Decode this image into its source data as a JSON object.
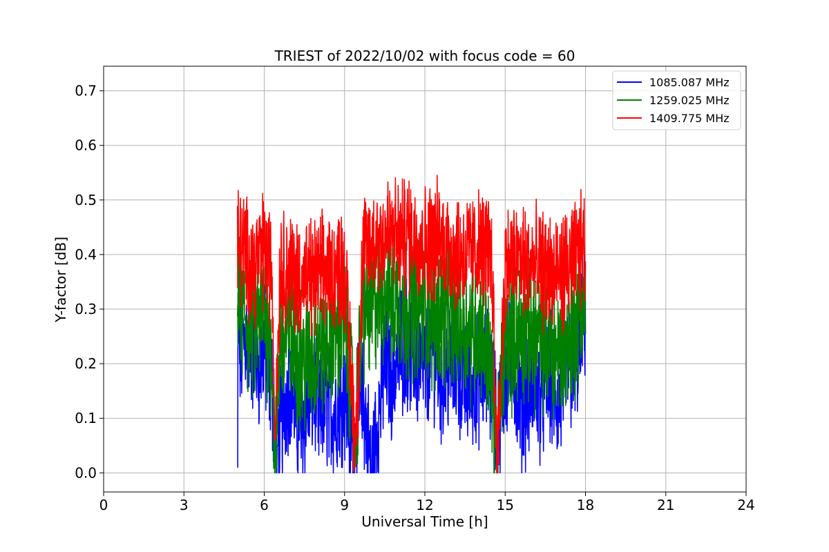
{
  "chart_data": {
    "type": "line",
    "title": "TRIEST of 2022/10/02 with focus code = 60",
    "xlabel": "Universal Time [h]",
    "ylabel": "Y-factor [dB]",
    "xlim": [
      0,
      24
    ],
    "ylim": [
      -0.035,
      0.745
    ],
    "xticks": [
      0,
      3,
      6,
      9,
      12,
      15,
      18,
      21,
      24
    ],
    "yticks": [
      0.0,
      0.1,
      0.2,
      0.3,
      0.4,
      0.5,
      0.6,
      0.7
    ],
    "xtick_labels": [
      "0",
      "3",
      "6",
      "9",
      "12",
      "15",
      "18",
      "21",
      "24"
    ],
    "ytick_labels": [
      "0.0",
      "0.1",
      "0.2",
      "0.3",
      "0.4",
      "0.5",
      "0.6",
      "0.7"
    ],
    "grid": true,
    "legend_position": "top-right",
    "x_range_of_data": [
      5.0,
      18.0
    ],
    "series": [
      {
        "name": "1085.087 MHz",
        "color": "#0000ff",
        "x": [
          5.0,
          5.02,
          5.1,
          5.3,
          5.5,
          5.8,
          6.0,
          6.3,
          6.4,
          6.5,
          6.8,
          7.0,
          7.3,
          7.6,
          7.9,
          8.0,
          8.3,
          8.6,
          9.0,
          9.35,
          9.4,
          9.7,
          10.0,
          10.3,
          10.5,
          10.8,
          11.0,
          11.3,
          11.6,
          12.0,
          12.3,
          12.6,
          13.0,
          13.3,
          13.6,
          14.0,
          14.3,
          14.6,
          14.7,
          15.0,
          15.3,
          15.6,
          16.0,
          16.3,
          16.6,
          17.0,
          17.3,
          17.6,
          18.0
        ],
        "values": [
          0.01,
          0.28,
          0.22,
          0.25,
          0.24,
          0.2,
          0.23,
          0.15,
          0.08,
          0.05,
          0.14,
          0.18,
          0.06,
          0.12,
          0.16,
          0.1,
          0.13,
          0.11,
          0.15,
          0.03,
          0.09,
          0.14,
          0.0,
          0.12,
          0.2,
          0.18,
          0.22,
          0.24,
          0.21,
          0.19,
          0.23,
          0.17,
          0.2,
          0.18,
          0.16,
          0.17,
          0.19,
          0.15,
          0.06,
          0.18,
          0.2,
          0.12,
          0.16,
          0.14,
          0.18,
          0.12,
          0.2,
          0.18,
          0.3
        ]
      },
      {
        "name": "1259.025 MHz",
        "color": "#008000",
        "x": [
          5.0,
          5.3,
          5.6,
          6.0,
          6.3,
          6.4,
          6.6,
          7.0,
          7.5,
          8.0,
          8.5,
          9.0,
          9.4,
          9.7,
          10.0,
          10.3,
          10.6,
          10.8,
          11.0,
          11.3,
          11.6,
          12.0,
          12.3,
          12.6,
          13.0,
          13.3,
          13.6,
          14.0,
          14.3,
          14.7,
          15.0,
          15.5,
          16.0,
          16.5,
          17.0,
          17.5,
          18.0
        ],
        "values": [
          0.3,
          0.28,
          0.26,
          0.3,
          0.22,
          0.0,
          0.25,
          0.24,
          0.2,
          0.22,
          0.25,
          0.28,
          0.08,
          0.3,
          0.3,
          0.32,
          0.35,
          0.3,
          0.32,
          0.3,
          0.31,
          0.3,
          0.28,
          0.3,
          0.27,
          0.28,
          0.26,
          0.27,
          0.25,
          0.05,
          0.24,
          0.26,
          0.25,
          0.24,
          0.22,
          0.25,
          0.32
        ]
      },
      {
        "name": "1409.775 MHz",
        "color": "#ff0000",
        "x": [
          5.0,
          5.3,
          5.6,
          6.0,
          6.3,
          6.4,
          6.6,
          7.0,
          7.5,
          8.0,
          8.5,
          9.0,
          9.4,
          9.7,
          10.0,
          10.3,
          10.6,
          11.0,
          11.5,
          12.0,
          12.5,
          13.0,
          13.5,
          14.0,
          14.5,
          14.7,
          15.0,
          15.5,
          16.0,
          16.5,
          17.0,
          17.5,
          18.0
        ],
        "values": [
          0.42,
          0.4,
          0.38,
          0.41,
          0.36,
          0.06,
          0.38,
          0.37,
          0.35,
          0.36,
          0.37,
          0.38,
          0.05,
          0.4,
          0.42,
          0.43,
          0.44,
          0.43,
          0.44,
          0.42,
          0.43,
          0.41,
          0.4,
          0.41,
          0.4,
          0.0,
          0.38,
          0.39,
          0.38,
          0.37,
          0.36,
          0.38,
          0.42
        ]
      }
    ]
  }
}
